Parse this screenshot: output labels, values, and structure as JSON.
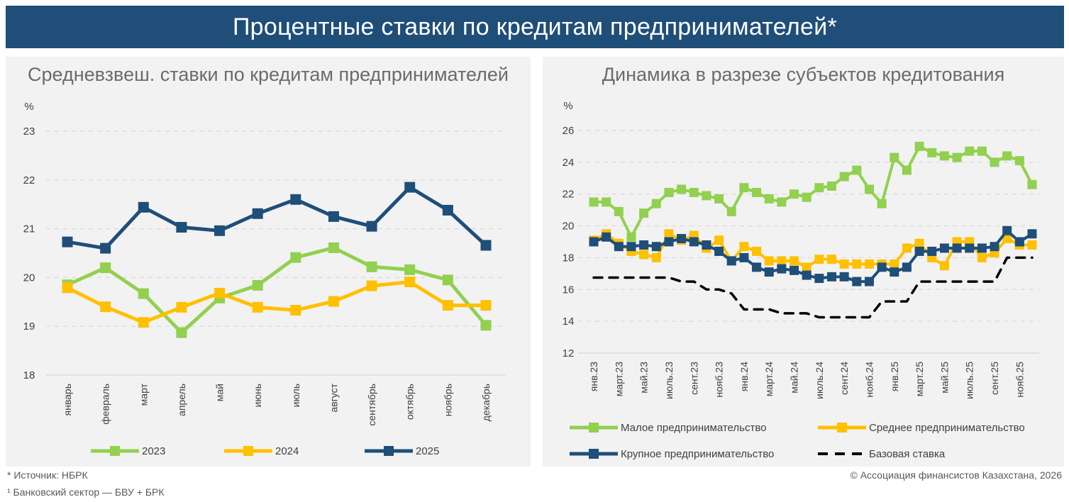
{
  "header": {
    "title": "Процентные ставки по кредитам предпринимателей*"
  },
  "footnotes": {
    "source": "* Источник: НБРК",
    "note": "¹ Банковский сектор — БВУ + БРК",
    "copyright": "© Ассоциация финансистов Казахстана, 2026"
  },
  "colors": {
    "green": "#92d050",
    "yellow": "#ffc000",
    "navy": "#1f4e79",
    "black": "#000000",
    "grid": "#d9d9d9",
    "panel": "#f2f2f2"
  },
  "chart_data": [
    {
      "type": "line",
      "title": "Средневзвеш. ставки по кредитам предпринимателей",
      "ylabel": "%",
      "xlabel": "",
      "ylim": [
        18,
        23
      ],
      "yticks": [
        18,
        19,
        20,
        21,
        22,
        23
      ],
      "grid": true,
      "legend": "bottom",
      "categories": [
        "январь",
        "февраль",
        "март",
        "апрель",
        "май",
        "июнь",
        "июль",
        "август",
        "сентябрь",
        "октябрь",
        "ноябрь",
        "декабрь"
      ],
      "series": [
        {
          "name": "2023",
          "color": "#92d050",
          "marker": "square",
          "values": [
            19.85,
            20.2,
            19.67,
            18.87,
            19.58,
            19.84,
            20.41,
            20.61,
            20.22,
            20.16,
            19.95,
            19.02
          ]
        },
        {
          "name": "2024",
          "color": "#ffc000",
          "marker": "square",
          "values": [
            19.79,
            19.4,
            19.08,
            19.39,
            19.68,
            19.39,
            19.33,
            19.51,
            19.83,
            19.91,
            19.43,
            19.43
          ]
        },
        {
          "name": "2025",
          "color": "#1f4e79",
          "marker": "square",
          "values": [
            20.73,
            20.6,
            21.44,
            21.03,
            20.96,
            21.31,
            21.6,
            21.25,
            21.05,
            21.85,
            21.38,
            20.66
          ]
        }
      ]
    },
    {
      "type": "line",
      "title": "Динамика в разрезе субъектов кредитования",
      "ylabel": "%",
      "xlabel": "",
      "ylim": [
        12,
        26
      ],
      "yticks": [
        12,
        14,
        16,
        18,
        20,
        22,
        24,
        26
      ],
      "grid": true,
      "legend": "bottom",
      "x": [
        "янв.23",
        "февр.23",
        "март.23",
        "апр.23",
        "май.23",
        "июнь.23",
        "июль.23",
        "авг.23",
        "сент.23",
        "окт.23",
        "нояб.23",
        "дек.23",
        "янв.24",
        "февр.24",
        "март.24",
        "апр.24",
        "май.24",
        "июнь.24",
        "июль.24",
        "авг.24",
        "сент.24",
        "окт.24",
        "нояб.24",
        "дек.24",
        "янв.25",
        "февр.25",
        "март.25",
        "апр.25",
        "май.25",
        "июнь.25",
        "июль.25",
        "авг.25",
        "сент.25",
        "окт.25",
        "нояб.25",
        "дек.25"
      ],
      "xtick_labels": [
        "янв.23",
        "март.23",
        "май.23",
        "июль.23",
        "сент.23",
        "нояб.23",
        "янв.24",
        "март.24",
        "май.24",
        "июль.24",
        "сент.24",
        "нояб.24",
        "янв.25",
        "март.25",
        "май.25",
        "июль.25",
        "сент.25",
        "нояб.25"
      ],
      "series": [
        {
          "name": "Малое предпринимательство",
          "color": "#92d050",
          "marker": "square",
          "dashed": false,
          "values": [
            21.5,
            21.5,
            20.9,
            19.3,
            20.8,
            21.4,
            22.1,
            22.3,
            22.1,
            21.9,
            21.7,
            20.9,
            22.4,
            22.1,
            21.7,
            21.5,
            22.0,
            21.8,
            22.4,
            22.5,
            23.1,
            23.5,
            22.3,
            21.4,
            24.3,
            23.5,
            25.0,
            24.6,
            24.4,
            24.3,
            24.7,
            24.7,
            24.0,
            24.4,
            24.1,
            22.6
          ]
        },
        {
          "name": "Среднее предпринимательство",
          "color": "#ffc000",
          "marker": "square",
          "dashed": false,
          "values": [
            19.1,
            19.5,
            18.9,
            18.4,
            18.2,
            18.0,
            19.5,
            19.1,
            19.4,
            18.6,
            19.1,
            17.8,
            18.7,
            18.4,
            17.8,
            17.8,
            17.8,
            17.4,
            17.9,
            17.9,
            17.6,
            17.6,
            17.6,
            17.6,
            17.6,
            18.6,
            18.9,
            18.0,
            17.5,
            19.0,
            19.0,
            18.0,
            18.3,
            19.2,
            18.8,
            18.8
          ]
        },
        {
          "name": "Крупное предпринимательство",
          "color": "#1f4e79",
          "marker": "square",
          "dashed": false,
          "values": [
            19.0,
            19.3,
            18.7,
            18.7,
            18.8,
            18.7,
            19.0,
            19.2,
            19.0,
            18.8,
            18.4,
            17.8,
            18.0,
            17.4,
            17.1,
            17.3,
            17.2,
            16.9,
            16.7,
            16.8,
            16.8,
            16.5,
            16.5,
            17.4,
            17.1,
            17.4,
            18.4,
            18.4,
            18.6,
            18.6,
            18.6,
            18.6,
            18.7,
            19.7,
            19.0,
            19.5
          ]
        },
        {
          "name": "Базовая ставка",
          "color": "#000000",
          "marker": "none",
          "dashed": true,
          "values": [
            16.75,
            16.75,
            16.75,
            16.75,
            16.75,
            16.75,
            16.75,
            16.5,
            16.5,
            16.0,
            16.0,
            15.75,
            14.75,
            14.75,
            14.75,
            14.5,
            14.5,
            14.5,
            14.25,
            14.25,
            14.25,
            14.25,
            14.25,
            15.25,
            15.25,
            15.25,
            16.5,
            16.5,
            16.5,
            16.5,
            16.5,
            16.5,
            16.5,
            18.0,
            18.0,
            18.0
          ]
        }
      ]
    }
  ]
}
